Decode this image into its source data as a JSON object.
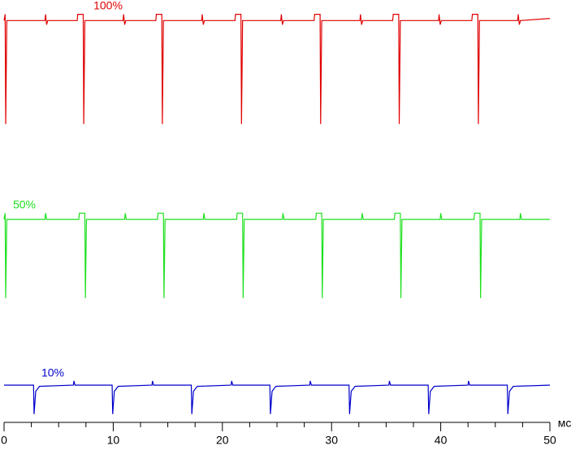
{
  "chart_data": {
    "type": "line",
    "x_unit_label": "мс",
    "xlim": [
      0,
      50
    ],
    "xticks": [
      0,
      10,
      20,
      30,
      40,
      50
    ],
    "xminorticks": [
      2.5,
      5,
      7.5,
      12.5,
      15,
      17.5,
      22.5,
      25,
      27.5,
      32.5,
      35,
      37.5,
      42.5,
      45,
      47.5
    ],
    "ylim": [
      0,
      100
    ],
    "series": [
      {
        "name": "100%",
        "color": "#e00000",
        "x": [
          0,
          0.1,
          0.15,
          0.25,
          3.75,
          3.8,
          3.9,
          4.0,
          6.7,
          6.75,
          7.25,
          7.3,
          7.4,
          10.9,
          10.95,
          11.05,
          11.15,
          13.9,
          13.95,
          14.45,
          14.5,
          14.6,
          18.1,
          18.15,
          18.25,
          18.35,
          21.15,
          21.2,
          21.7,
          21.75,
          21.85,
          25.35,
          25.4,
          25.5,
          25.6,
          28.4,
          28.45,
          28.95,
          29.0,
          29.1,
          32.6,
          32.65,
          32.75,
          32.85,
          35.6,
          35.65,
          36.15,
          36.2,
          36.3,
          39.8,
          39.85,
          39.95,
          40.05,
          42.85,
          42.9,
          43.4,
          43.45,
          43.55,
          47.05,
          47.1,
          47.2,
          47.3,
          50
        ],
        "values": [
          97,
          98.5,
          72,
          97,
          97,
          98.5,
          96,
          97,
          97,
          98.5,
          98.5,
          72,
          97,
          97,
          98.5,
          96,
          97,
          97,
          98.5,
          98.5,
          72,
          97,
          97,
          98.5,
          96,
          97,
          97,
          98.5,
          98.5,
          72,
          97,
          97,
          98.5,
          96,
          97,
          97,
          98.5,
          98.5,
          72,
          97,
          97,
          98.5,
          96,
          97,
          97,
          98.5,
          98.5,
          72,
          97,
          97,
          98.5,
          96,
          97,
          97,
          98.5,
          98.5,
          72,
          97,
          97,
          98.5,
          96,
          97,
          97.5
        ]
      },
      {
        "name": "50%",
        "color": "#1ee01e",
        "x": [
          0,
          0.1,
          0.15,
          0.25,
          3.75,
          3.8,
          3.9,
          6.85,
          6.9,
          7.4,
          7.45,
          7.55,
          11.05,
          11.1,
          11.2,
          14.05,
          14.1,
          14.6,
          14.65,
          14.75,
          18.25,
          18.3,
          18.4,
          21.3,
          21.35,
          21.85,
          21.9,
          22.0,
          25.5,
          25.55,
          25.65,
          28.55,
          28.6,
          29.1,
          29.15,
          29.25,
          32.75,
          32.8,
          32.9,
          35.75,
          35.8,
          36.3,
          36.35,
          36.45,
          39.95,
          40.0,
          40.1,
          43.05,
          43.1,
          43.6,
          43.65,
          43.75,
          47.25,
          47.3,
          47.4,
          50
        ],
        "values": [
          49,
          50.5,
          30,
          49,
          49,
          50.5,
          49,
          49,
          50.5,
          50.5,
          30,
          49,
          49,
          50.5,
          49,
          49,
          50.5,
          50.5,
          30,
          49,
          49,
          50.5,
          49,
          49,
          50.5,
          50.5,
          30,
          49,
          49,
          50.5,
          49,
          49,
          50.5,
          50.5,
          30,
          49,
          49,
          50.5,
          49,
          49,
          50.5,
          50.5,
          30,
          49,
          49,
          50.5,
          49,
          49,
          50.5,
          50.5,
          30,
          49,
          49,
          50.5,
          49,
          49
        ]
      },
      {
        "name": "10%",
        "color": "#0000cc",
        "x": [
          0,
          2.7,
          2.75,
          2.9,
          3.25,
          6.35,
          6.4,
          6.5,
          9.9,
          9.95,
          10.1,
          10.45,
          13.55,
          13.6,
          13.7,
          17.15,
          17.2,
          17.35,
          17.7,
          20.8,
          20.85,
          20.95,
          24.35,
          24.4,
          24.55,
          24.9,
          28.0,
          28.05,
          28.15,
          31.6,
          31.65,
          31.8,
          32.15,
          35.25,
          35.3,
          35.4,
          38.85,
          38.9,
          39.05,
          39.4,
          42.5,
          42.55,
          42.65,
          46.1,
          46.15,
          46.3,
          46.65,
          50
        ],
        "values": [
          9,
          9,
          2,
          7.5,
          8.7,
          9,
          10,
          9,
          9,
          2,
          7.5,
          8.7,
          9,
          10,
          9,
          9,
          2,
          7.5,
          8.7,
          9,
          10,
          9,
          9,
          2,
          7.5,
          8.7,
          9,
          10,
          9,
          9,
          2,
          7.5,
          8.7,
          9,
          10,
          9,
          9,
          2,
          7.5,
          8.7,
          9,
          10,
          9,
          9,
          2,
          7.5,
          8.7,
          9
        ]
      }
    ]
  }
}
